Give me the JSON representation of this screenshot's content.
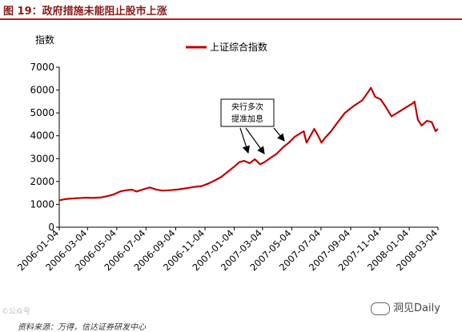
{
  "figure_title": "图 19：政府措施未能阻止股市上涨",
  "source_note": "资料来源：万得，信达证券研发中心",
  "watermark": "洞见Daily",
  "corner_mark": "©公众号",
  "colors": {
    "series": "#c00000",
    "title": "#8b1a1a",
    "rule": "#b22222"
  },
  "chart_data": {
    "type": "line",
    "ylabel": "指数",
    "ylim": [
      0,
      7000
    ],
    "yticks": [
      0,
      1000,
      2000,
      3000,
      4000,
      5000,
      6000,
      7000
    ],
    "xticks": [
      "2006-01-04",
      "2006-03-04",
      "2006-05-04",
      "2006-07-04",
      "2006-09-04",
      "2006-11-04",
      "2007-01-04",
      "2007-03-04",
      "2007-05-04",
      "2007-07-04",
      "2007-09-04",
      "2007-11-04",
      "2008-01-04",
      "2008-03-04"
    ],
    "xrange": [
      "2006-01-04",
      "2008-03-04"
    ],
    "grid": false,
    "legend": {
      "position": "top-center"
    },
    "series": [
      {
        "name": "上证综合指数",
        "points": [
          [
            "2006-01-04",
            1180
          ],
          [
            "2006-01-20",
            1240
          ],
          [
            "2006-02-10",
            1270
          ],
          [
            "2006-02-28",
            1290
          ],
          [
            "2006-03-15",
            1280
          ],
          [
            "2006-03-31",
            1300
          ],
          [
            "2006-04-15",
            1360
          ],
          [
            "2006-04-28",
            1440
          ],
          [
            "2006-05-12",
            1570
          ],
          [
            "2006-05-25",
            1620
          ],
          [
            "2006-06-05",
            1640
          ],
          [
            "2006-06-14",
            1560
          ],
          [
            "2006-06-30",
            1670
          ],
          [
            "2006-07-12",
            1740
          ],
          [
            "2006-07-25",
            1650
          ],
          [
            "2006-08-08",
            1600
          ],
          [
            "2006-08-25",
            1620
          ],
          [
            "2006-09-08",
            1650
          ],
          [
            "2006-09-25",
            1700
          ],
          [
            "2006-10-12",
            1760
          ],
          [
            "2006-10-28",
            1800
          ],
          [
            "2006-11-10",
            1900
          ],
          [
            "2006-11-25",
            2050
          ],
          [
            "2006-12-08",
            2200
          ],
          [
            "2006-12-20",
            2400
          ],
          [
            "2007-01-04",
            2650
          ],
          [
            "2007-01-15",
            2850
          ],
          [
            "2007-01-25",
            2900
          ],
          [
            "2007-02-05",
            2800
          ],
          [
            "2007-02-16",
            2970
          ],
          [
            "2007-02-27",
            2750
          ],
          [
            "2007-03-08",
            2850
          ],
          [
            "2007-03-20",
            3020
          ],
          [
            "2007-04-02",
            3200
          ],
          [
            "2007-04-16",
            3500
          ],
          [
            "2007-04-28",
            3700
          ],
          [
            "2007-05-10",
            3950
          ],
          [
            "2007-05-29",
            4200
          ],
          [
            "2007-05-31",
            4000
          ],
          [
            "2007-06-04",
            3700
          ],
          [
            "2007-06-12",
            4000
          ],
          [
            "2007-06-20",
            4300
          ],
          [
            "2007-06-28",
            4000
          ],
          [
            "2007-07-05",
            3700
          ],
          [
            "2007-07-12",
            3900
          ],
          [
            "2007-07-25",
            4200
          ],
          [
            "2007-08-08",
            4600
          ],
          [
            "2007-08-23",
            5000
          ],
          [
            "2007-09-10",
            5300
          ],
          [
            "2007-09-28",
            5550
          ],
          [
            "2007-10-10",
            5900
          ],
          [
            "2007-10-16",
            6100
          ],
          [
            "2007-10-25",
            5700
          ],
          [
            "2007-11-05",
            5600
          ],
          [
            "2007-11-15",
            5300
          ],
          [
            "2007-11-28",
            4850
          ],
          [
            "2007-12-10",
            5000
          ],
          [
            "2007-12-25",
            5200
          ],
          [
            "2008-01-10",
            5400
          ],
          [
            "2008-01-15",
            5500
          ],
          [
            "2008-01-22",
            4700
          ],
          [
            "2008-01-30",
            4450
          ],
          [
            "2008-02-10",
            4650
          ],
          [
            "2008-02-20",
            4600
          ],
          [
            "2008-02-28",
            4200
          ],
          [
            "2008-03-04",
            4300
          ]
        ]
      }
    ],
    "annotation": {
      "text": "央行多次提准加息",
      "lines": [
        "央行多次",
        "提准加息"
      ]
    }
  }
}
